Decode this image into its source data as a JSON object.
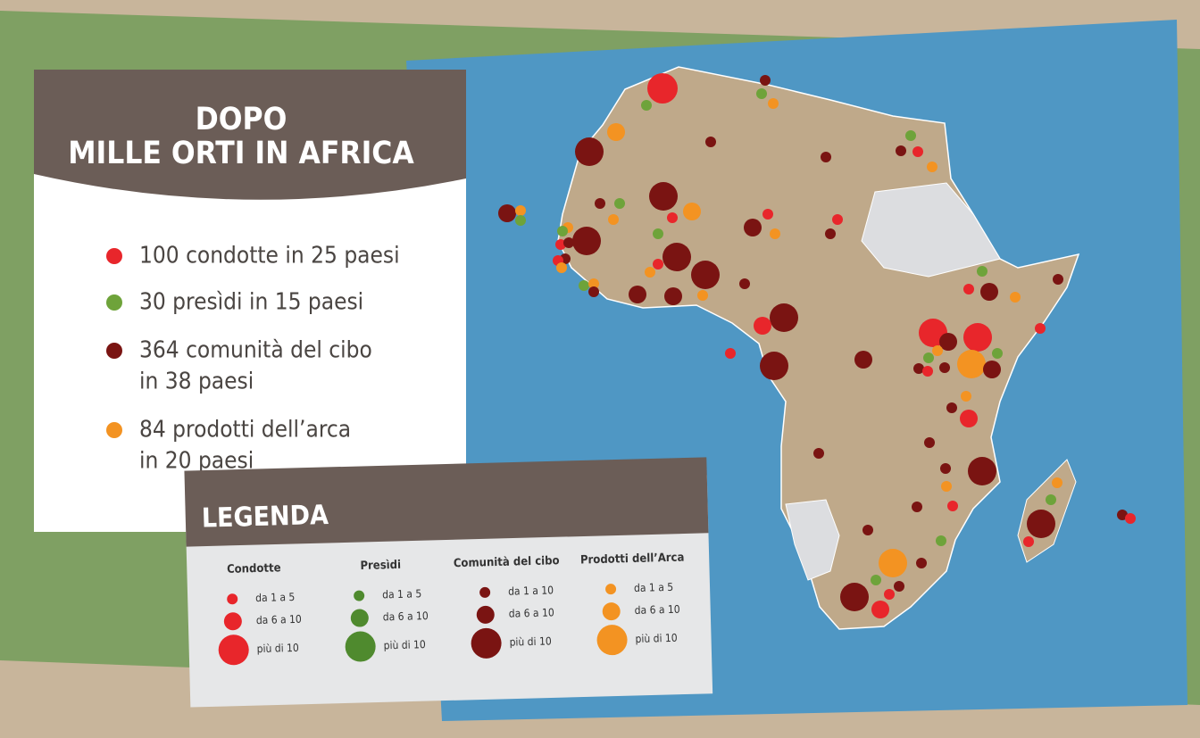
{
  "header": {
    "title_lines": [
      "DOPO",
      "MILLE ORTI IN AFRICA"
    ]
  },
  "stats": [
    {
      "lines": [
        "100 condotte in 25 paesi"
      ],
      "color": "#e8262b"
    },
    {
      "lines": [
        "30 presìdi in 15 paesi"
      ],
      "color": "#6ea33a"
    },
    {
      "lines": [
        "364 comunità del cibo",
        "in 38 paesi"
      ],
      "color": "#7a1412"
    },
    {
      "lines": [
        "84 prodotti dell’arca",
        "in 20 paesi"
      ],
      "color": "#f39322"
    }
  ],
  "legend": {
    "title": "LEGENDA",
    "columns": [
      {
        "header": "Condotte",
        "color": "#e8262b",
        "sizes": [
          "da 1 a 5",
          "da 6 a 10",
          "più di 10"
        ]
      },
      {
        "header": "Presìdi",
        "color": "#4f8a2e",
        "sizes": [
          "da 1 a 5",
          "da 6 a 10",
          "più di 10"
        ]
      },
      {
        "header": "Comunità del cibo",
        "color": "#7a1412",
        "sizes": [
          "da 1 a 10",
          "da 6 a 10",
          "più di 10"
        ]
      },
      {
        "header": "Prodotti dell’Arca",
        "color": "#f39322",
        "sizes": [
          "da 1 a 5",
          "da 6 a 10",
          "più di 10"
        ]
      }
    ]
  }
}
